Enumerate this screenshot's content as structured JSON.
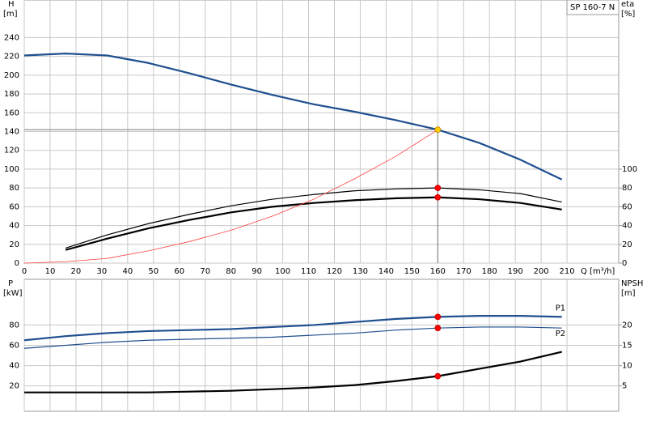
{
  "chart_data": [
    {
      "type": "line",
      "title": "SP 160-7 N",
      "xlabel": "Q [m³/h]",
      "ylabel": "H",
      "yunit": "[m]",
      "y2label": "eta",
      "y2unit": "[%]",
      "xlim": [
        0,
        230
      ],
      "xticks": [
        0,
        10,
        20,
        30,
        40,
        50,
        60,
        70,
        80,
        90,
        100,
        110,
        120,
        130,
        140,
        150,
        160,
        170,
        180,
        190,
        200,
        210
      ],
      "ylim": [
        0,
        280
      ],
      "yticks": [
        0,
        20,
        40,
        60,
        80,
        100,
        120,
        140,
        160,
        180,
        200,
        220,
        240
      ],
      "y2lim": [
        0,
        280
      ],
      "y2ticks": [
        0,
        20,
        40,
        60,
        80,
        100
      ],
      "grid": true,
      "series": [
        {
          "color": "#1f4f8f",
          "style": "thick",
          "x": [
            0,
            16,
            32,
            48,
            64,
            80,
            96,
            112,
            128,
            144,
            160,
            176,
            192,
            208
          ],
          "values": [
            221,
            223,
            221,
            213,
            202,
            190,
            179,
            169,
            161,
            152,
            142,
            128,
            110,
            89
          ]
        },
        {
          "color": "#000000",
          "style": "thin",
          "axis": "y2",
          "x": [
            16,
            32,
            48,
            64,
            80,
            96,
            112,
            128,
            144,
            160,
            176,
            192,
            208
          ],
          "values": [
            16,
            30,
            42,
            52,
            61,
            68,
            73,
            77,
            79,
            80,
            78,
            74,
            65
          ]
        },
        {
          "color": "#000000",
          "style": "thick",
          "axis": "y2",
          "x": [
            16,
            32,
            48,
            64,
            80,
            96,
            112,
            128,
            144,
            160,
            176,
            192,
            208
          ],
          "values": [
            14,
            26,
            37,
            46,
            54,
            60,
            64,
            67,
            69,
            70,
            68,
            64,
            57
          ]
        },
        {
          "color": "#ff4040",
          "style": "hair",
          "x": [
            0,
            16,
            32,
            48,
            64,
            80,
            96,
            112,
            128,
            144,
            160
          ],
          "values": [
            0,
            1.5,
            5,
            13,
            23,
            35,
            50,
            68,
            90,
            114,
            142
          ]
        }
      ],
      "hline": 142,
      "vline": 160,
      "markers": [
        {
          "x": 160,
          "y": 142,
          "color": "#ffcc00"
        },
        {
          "x": 160,
          "y": 80,
          "axis": "y2",
          "color": "#ff0000"
        },
        {
          "x": 160,
          "y": 70,
          "axis": "y2",
          "color": "#ff0000"
        }
      ]
    },
    {
      "type": "line",
      "ylabel": "P",
      "yunit": "[kW]",
      "y2label": "NPSH",
      "y2unit": "[m]",
      "xlim": [
        0,
        230
      ],
      "ylim": [
        -5,
        125
      ],
      "yticks": [
        20,
        40,
        60,
        80
      ],
      "y2lim": [
        -1.25,
        31.25
      ],
      "y2ticks": [
        5,
        10,
        15,
        20
      ],
      "grid": true,
      "series": [
        {
          "name": "P1",
          "color": "#1f4f8f",
          "style": "thick",
          "x": [
            0,
            16,
            32,
            48,
            64,
            80,
            96,
            112,
            128,
            144,
            160,
            176,
            192,
            208
          ],
          "values": [
            65,
            69,
            72,
            74,
            75,
            76,
            78,
            80,
            83,
            86,
            88,
            89,
            89,
            88
          ]
        },
        {
          "name": "P2",
          "color": "#1f4f8f",
          "style": "thin",
          "x": [
            0,
            16,
            32,
            48,
            64,
            80,
            96,
            112,
            128,
            144,
            160,
            176,
            192,
            208
          ],
          "values": [
            57,
            60,
            63,
            65,
            66,
            67,
            68,
            70,
            72,
            75,
            77,
            78,
            78,
            77
          ]
        },
        {
          "color": "#000000",
          "style": "thick",
          "axis": "y2",
          "x": [
            0,
            16,
            32,
            48,
            64,
            80,
            96,
            112,
            128,
            144,
            160,
            176,
            192,
            208
          ],
          "values": [
            3.4,
            3.4,
            3.4,
            3.4,
            3.6,
            3.8,
            4.2,
            4.6,
            5.2,
            6.2,
            7.4,
            9.2,
            11,
            13.4
          ]
        }
      ],
      "markers": [
        {
          "x": 160,
          "y": 88,
          "color": "#ff0000"
        },
        {
          "x": 160,
          "y": 77,
          "color": "#ff0000"
        },
        {
          "x": 160,
          "y": 7.4,
          "axis": "y2",
          "color": "#ff0000"
        }
      ]
    }
  ]
}
